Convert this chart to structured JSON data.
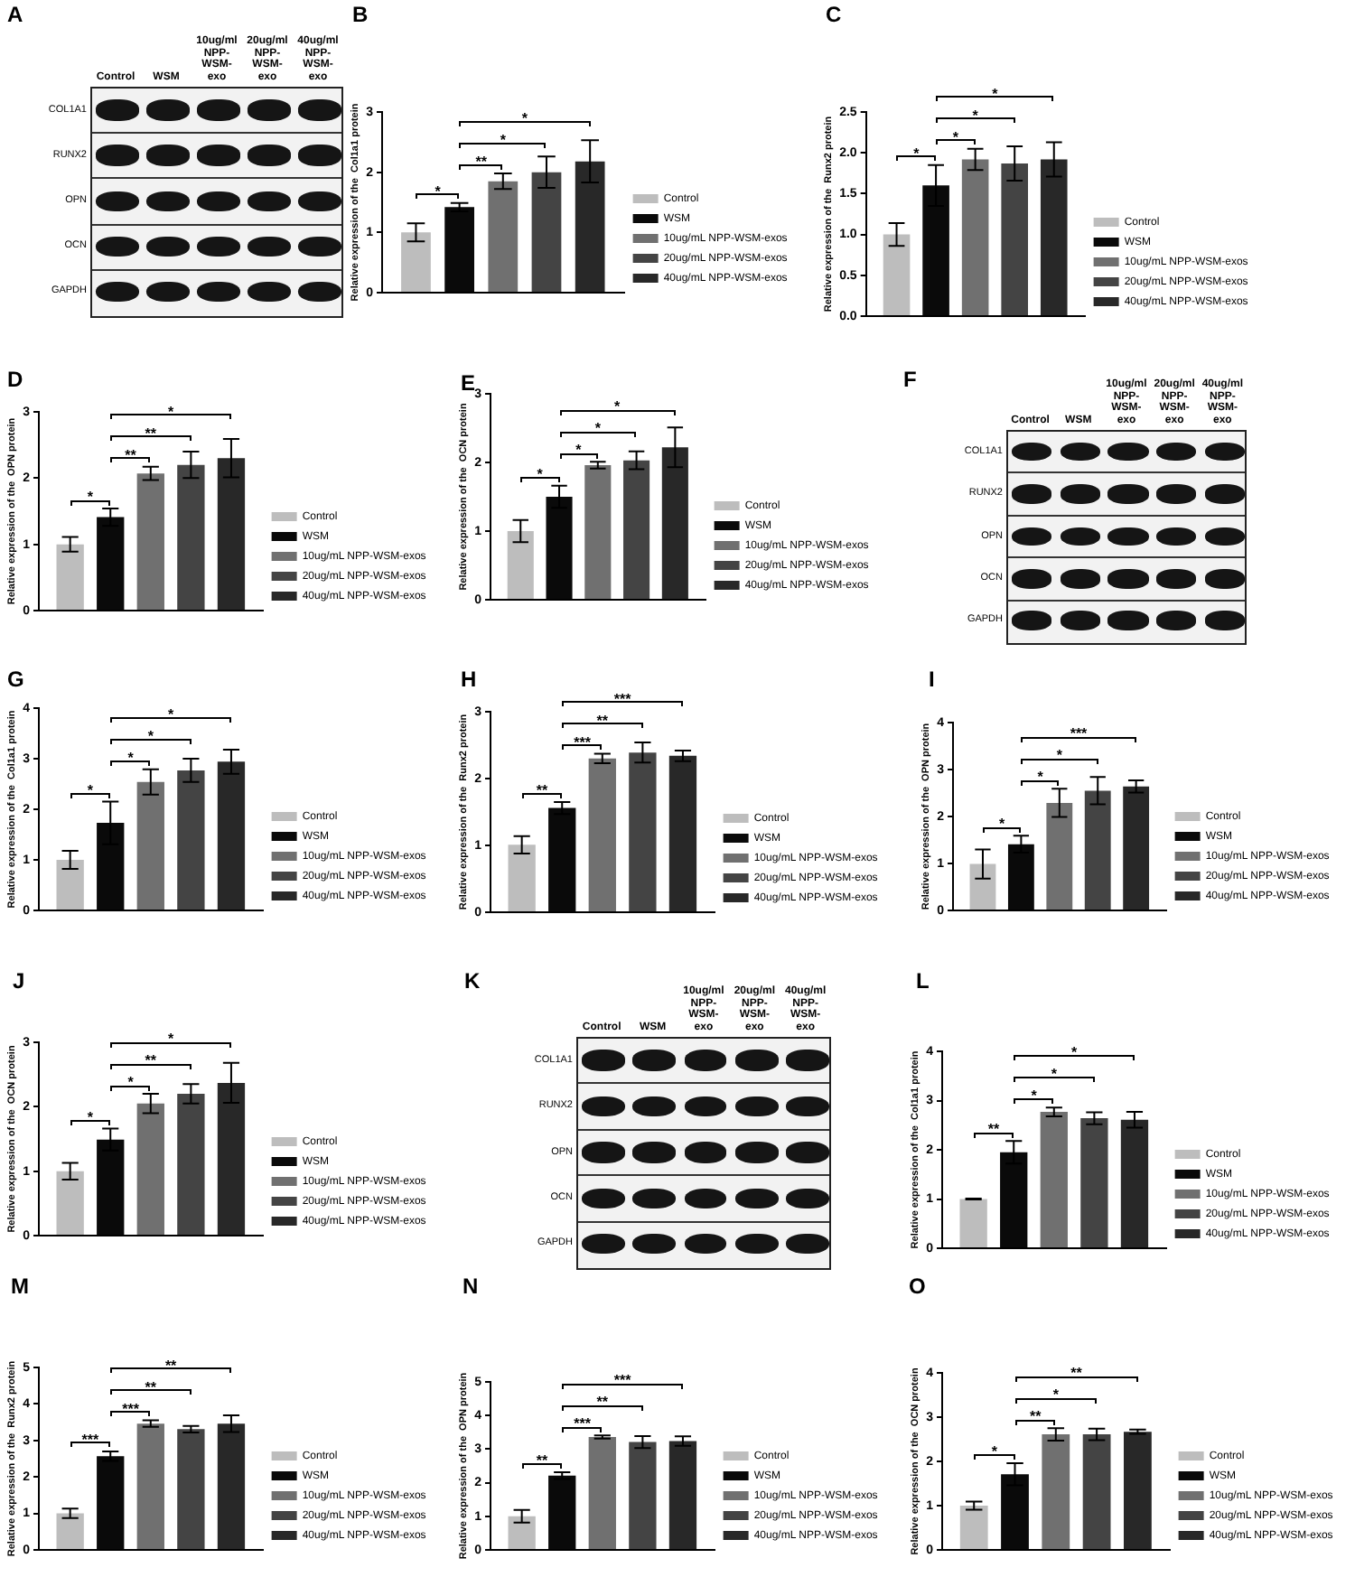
{
  "chart_data": [
    {
      "type": "other",
      "title": "A",
      "categories": [
        "Control",
        "WSM",
        "10ug/ml NPP-WSM-exo",
        "20ug/ml NPP-WSM-exo",
        "40ug/ml NPP-WSM-exo"
      ],
      "y_categories": [
        "COL1A1",
        "RUNX2",
        "OPN",
        "OCN",
        "GAPDH"
      ]
    },
    {
      "type": "bar",
      "title": "B",
      "ylabel": "Relative expression of the  Col1a1 protein",
      "categories": [
        null
      ],
      "series": [
        {
          "name": "Control",
          "color": "#bdbdbd",
          "values": [
            1.0
          ],
          "errors": [
            0.15
          ]
        },
        {
          "name": "WSM",
          "color": "#0a0a0a",
          "values": [
            1.42
          ],
          "errors": [
            0.07
          ]
        },
        {
          "name": "10ug/mL NPP-WSM-exos",
          "color": "#707070",
          "values": [
            1.85
          ],
          "errors": [
            0.13
          ]
        },
        {
          "name": "20ug/mL NPP-WSM-exos",
          "color": "#444444",
          "values": [
            2.0
          ],
          "errors": [
            0.26
          ]
        },
        {
          "name": "40ug/mL NPP-WSM-exos",
          "color": "#282828",
          "values": [
            2.18
          ],
          "errors": [
            0.35
          ]
        }
      ],
      "ylim": [
        0,
        3
      ],
      "yticks": [
        0,
        1,
        2,
        3
      ],
      "legend": "right",
      "annotations": [
        "*",
        "**",
        "*",
        "*"
      ]
    },
    {
      "type": "bar",
      "title": "C",
      "ylabel": "Relative expression of the  Runx2 protein",
      "categories": [
        null
      ],
      "series": [
        {
          "name": "Control",
          "color": "#bdbdbd",
          "values": [
            1.0
          ],
          "errors": [
            0.14
          ]
        },
        {
          "name": "WSM",
          "color": "#0a0a0a",
          "values": [
            1.6
          ],
          "errors": [
            0.25
          ]
        },
        {
          "name": "10ug/mL NPP-WSM-exos",
          "color": "#707070",
          "values": [
            1.92
          ],
          "errors": [
            0.13
          ]
        },
        {
          "name": "20ug/mL NPP-WSM-exos",
          "color": "#444444",
          "values": [
            1.87
          ],
          "errors": [
            0.21
          ]
        },
        {
          "name": "40ug/mL NPP-WSM-exos",
          "color": "#282828",
          "values": [
            1.92
          ],
          "errors": [
            0.21
          ]
        }
      ],
      "ylim": [
        0,
        2.5
      ],
      "yticks": [
        {
          "value": 0,
          "label": "0.0"
        },
        0.5,
        {
          "value": 1,
          "label": "1.0"
        },
        1.5,
        {
          "value": 2,
          "label": "2.0"
        },
        2.5
      ],
      "legend": "right",
      "annotations": [
        "*",
        "*",
        "*",
        "*"
      ]
    },
    {
      "type": "bar",
      "title": "D",
      "ylabel": "Relative expression of the  OPN protein",
      "categories": [
        null
      ],
      "series": [
        {
          "name": "Control",
          "color": "#bdbdbd",
          "values": [
            1.0
          ],
          "errors": [
            0.11
          ]
        },
        {
          "name": "WSM",
          "color": "#0a0a0a",
          "values": [
            1.41
          ],
          "errors": [
            0.13
          ]
        },
        {
          "name": "10ug/mL NPP-WSM-exos",
          "color": "#707070",
          "values": [
            2.07
          ],
          "errors": [
            0.1
          ]
        },
        {
          "name": "20ug/mL NPP-WSM-exos",
          "color": "#444444",
          "values": [
            2.2
          ],
          "errors": [
            0.2
          ]
        },
        {
          "name": "40ug/mL NPP-WSM-exos",
          "color": "#282828",
          "values": [
            2.3
          ],
          "errors": [
            0.29
          ]
        }
      ],
      "ylim": [
        0,
        3
      ],
      "yticks": [
        0,
        1,
        2,
        3
      ],
      "legend": "right",
      "annotations": [
        "*",
        "**",
        "**",
        "*"
      ]
    },
    {
      "type": "bar",
      "title": "E",
      "ylabel": "Relative expression of the  OCN protein",
      "categories": [
        null
      ],
      "series": [
        {
          "name": "Control",
          "color": "#bdbdbd",
          "values": [
            1.0
          ],
          "errors": [
            0.16
          ]
        },
        {
          "name": "WSM",
          "color": "#0a0a0a",
          "values": [
            1.5
          ],
          "errors": [
            0.16
          ]
        },
        {
          "name": "10ug/mL NPP-WSM-exos",
          "color": "#707070",
          "values": [
            1.96
          ],
          "errors": [
            0.05
          ]
        },
        {
          "name": "20ug/mL NPP-WSM-exos",
          "color": "#444444",
          "values": [
            2.03
          ],
          "errors": [
            0.13
          ]
        },
        {
          "name": "40ug/mL NPP-WSM-exos",
          "color": "#282828",
          "values": [
            2.22
          ],
          "errors": [
            0.29
          ]
        }
      ],
      "ylim": [
        0,
        3
      ],
      "yticks": [
        0,
        1,
        2,
        3
      ],
      "legend": "right",
      "annotations": [
        "*",
        "*",
        "*",
        "*"
      ]
    },
    {
      "type": "other",
      "title": "F",
      "categories": [
        "Control",
        "WSM",
        "10ug/ml NPP-WSM-exo",
        "20ug/ml NPP-WSM-exo",
        "40ug/ml NPP-WSM-exo"
      ],
      "y_categories": [
        "COL1A1",
        "RUNX2",
        "OPN",
        "OCN",
        "GAPDH"
      ]
    },
    {
      "type": "bar",
      "title": "G",
      "ylabel": "Relative expression of the  Col1a1 protein",
      "categories": [
        null
      ],
      "series": [
        {
          "name": "Control",
          "color": "#bdbdbd",
          "values": [
            1.0
          ],
          "errors": [
            0.18
          ]
        },
        {
          "name": "WSM",
          "color": "#0a0a0a",
          "values": [
            1.73
          ],
          "errors": [
            0.42
          ]
        },
        {
          "name": "10ug/mL NPP-WSM-exos",
          "color": "#707070",
          "values": [
            2.54
          ],
          "errors": [
            0.25
          ]
        },
        {
          "name": "20ug/mL NPP-WSM-exos",
          "color": "#444444",
          "values": [
            2.77
          ],
          "errors": [
            0.23
          ]
        },
        {
          "name": "40ug/mL NPP-WSM-exos",
          "color": "#282828",
          "values": [
            2.94
          ],
          "errors": [
            0.24
          ]
        }
      ],
      "ylim": [
        0,
        4
      ],
      "yticks": [
        0,
        1,
        2,
        3,
        4
      ],
      "legend": "right",
      "annotations": [
        "*",
        "*",
        "*",
        "*"
      ]
    },
    {
      "type": "bar",
      "title": "H",
      "ylabel": "Relative expression of the  Runx2 protein",
      "categories": [
        null
      ],
      "series": [
        {
          "name": "Control",
          "color": "#bdbdbd",
          "values": [
            1.01
          ],
          "errors": [
            0.13
          ]
        },
        {
          "name": "WSM",
          "color": "#0a0a0a",
          "values": [
            1.56
          ],
          "errors": [
            0.09
          ]
        },
        {
          "name": "10ug/mL NPP-WSM-exos",
          "color": "#707070",
          "values": [
            2.3
          ],
          "errors": [
            0.07
          ]
        },
        {
          "name": "20ug/mL NPP-WSM-exos",
          "color": "#444444",
          "values": [
            2.39
          ],
          "errors": [
            0.15
          ]
        },
        {
          "name": "40ug/mL NPP-WSM-exos",
          "color": "#282828",
          "values": [
            2.34
          ],
          "errors": [
            0.08
          ]
        }
      ],
      "ylim": [
        0,
        3
      ],
      "yticks": [
        0,
        1,
        2,
        3
      ],
      "legend": "right",
      "annotations": [
        "**",
        "***",
        "**",
        "***"
      ]
    },
    {
      "type": "bar",
      "title": "I",
      "ylabel": "Relative expression of the  OPN protein",
      "categories": [
        null
      ],
      "series": [
        {
          "name": "Control",
          "color": "#bdbdbd",
          "values": [
            0.99
          ],
          "errors": [
            0.31
          ]
        },
        {
          "name": "WSM",
          "color": "#0a0a0a",
          "values": [
            1.41
          ],
          "errors": [
            0.18
          ]
        },
        {
          "name": "10ug/mL NPP-WSM-exos",
          "color": "#707070",
          "values": [
            2.29
          ],
          "errors": [
            0.3
          ]
        },
        {
          "name": "20ug/mL NPP-WSM-exos",
          "color": "#444444",
          "values": [
            2.55
          ],
          "errors": [
            0.29
          ]
        },
        {
          "name": "40ug/mL NPP-WSM-exos",
          "color": "#282828",
          "values": [
            2.64
          ],
          "errors": [
            0.13
          ]
        }
      ],
      "ylim": [
        0,
        4
      ],
      "yticks": [
        0,
        1,
        2,
        3,
        4
      ],
      "legend": "right",
      "annotations": [
        "*",
        "*",
        "*",
        "***"
      ]
    },
    {
      "type": "bar",
      "title": "J",
      "ylabel": "Relative expression of the  OCN protein",
      "categories": [
        null
      ],
      "series": [
        {
          "name": "Control",
          "color": "#bdbdbd",
          "values": [
            1.0
          ],
          "errors": [
            0.13
          ]
        },
        {
          "name": "WSM",
          "color": "#0a0a0a",
          "values": [
            1.49
          ],
          "errors": [
            0.17
          ]
        },
        {
          "name": "10ug/mL NPP-WSM-exos",
          "color": "#707070",
          "values": [
            2.05
          ],
          "errors": [
            0.15
          ]
        },
        {
          "name": "20ug/mL NPP-WSM-exos",
          "color": "#444444",
          "values": [
            2.2
          ],
          "errors": [
            0.15
          ]
        },
        {
          "name": "40ug/mL NPP-WSM-exos",
          "color": "#282828",
          "values": [
            2.37
          ],
          "errors": [
            0.31
          ]
        }
      ],
      "ylim": [
        0,
        3
      ],
      "yticks": [
        0,
        1,
        2,
        3
      ],
      "legend": "right",
      "annotations": [
        "*",
        "*",
        "**",
        "*"
      ]
    },
    {
      "type": "other",
      "title": "K",
      "categories": [
        "Control",
        "WSM",
        "10ug/ml NPP-WSM-exo",
        "20ug/ml NPP-WSM-exo",
        "40ug/ml NPP-WSM-exo"
      ],
      "y_categories": [
        "COL1A1",
        "RUNX2",
        "OPN",
        "OCN",
        "GAPDH"
      ]
    },
    {
      "type": "bar",
      "title": "L",
      "ylabel": "Relative expression of the  Col1a1 protein",
      "categories": [
        null
      ],
      "series": [
        {
          "name": "Control",
          "color": "#bdbdbd",
          "values": [
            1.0
          ],
          "errors": [
            0.01
          ]
        },
        {
          "name": "WSM",
          "color": "#0a0a0a",
          "values": [
            1.95
          ],
          "errors": [
            0.23
          ]
        },
        {
          "name": "10ug/mL NPP-WSM-exos",
          "color": "#707070",
          "values": [
            2.77
          ],
          "errors": [
            0.09
          ]
        },
        {
          "name": "20ug/mL NPP-WSM-exos",
          "color": "#444444",
          "values": [
            2.64
          ],
          "errors": [
            0.12
          ]
        },
        {
          "name": "40ug/mL NPP-WSM-exos",
          "color": "#282828",
          "values": [
            2.61
          ],
          "errors": [
            0.16
          ]
        }
      ],
      "ylim": [
        0,
        4
      ],
      "yticks": [
        0,
        1,
        2,
        3,
        4
      ],
      "legend": "right",
      "annotations": [
        "**",
        "*",
        "*",
        "*"
      ]
    },
    {
      "type": "bar",
      "title": "M",
      "ylabel": "Relative expression of the  Runx2 protein",
      "categories": [
        null
      ],
      "series": [
        {
          "name": "Control",
          "color": "#bdbdbd",
          "values": [
            1.0
          ],
          "errors": [
            0.13
          ]
        },
        {
          "name": "WSM",
          "color": "#0a0a0a",
          "values": [
            2.57
          ],
          "errors": [
            0.13
          ]
        },
        {
          "name": "10ug/mL NPP-WSM-exos",
          "color": "#707070",
          "values": [
            3.46
          ],
          "errors": [
            0.09
          ]
        },
        {
          "name": "20ug/mL NPP-WSM-exos",
          "color": "#444444",
          "values": [
            3.31
          ],
          "errors": [
            0.09
          ]
        },
        {
          "name": "40ug/mL NPP-WSM-exos",
          "color": "#282828",
          "values": [
            3.46
          ],
          "errors": [
            0.23
          ]
        }
      ],
      "ylim": [
        0,
        5
      ],
      "yticks": [
        0,
        1,
        2,
        3,
        4,
        5
      ],
      "legend": "right",
      "annotations": [
        "***",
        "***",
        "**",
        "**"
      ]
    },
    {
      "type": "bar",
      "title": "N",
      "ylabel": "Relative expression of the  OPN protein",
      "categories": [
        null
      ],
      "series": [
        {
          "name": "Control",
          "color": "#bdbdbd",
          "values": [
            1.0
          ],
          "errors": [
            0.19
          ]
        },
        {
          "name": "WSM",
          "color": "#0a0a0a",
          "values": [
            2.21
          ],
          "errors": [
            0.1
          ]
        },
        {
          "name": "10ug/mL NPP-WSM-exos",
          "color": "#707070",
          "values": [
            3.36
          ],
          "errors": [
            0.05
          ]
        },
        {
          "name": "20ug/mL NPP-WSM-exos",
          "color": "#444444",
          "values": [
            3.21
          ],
          "errors": [
            0.18
          ]
        },
        {
          "name": "40ug/mL NPP-WSM-exos",
          "color": "#282828",
          "values": [
            3.24
          ],
          "errors": [
            0.14
          ]
        }
      ],
      "ylim": [
        0,
        5
      ],
      "yticks": [
        0,
        1,
        2,
        3,
        4,
        5
      ],
      "legend": "right",
      "annotations": [
        "**",
        "***",
        "**",
        "***"
      ]
    },
    {
      "type": "bar",
      "title": "O",
      "ylabel": "Relative expression of the  OCN protein",
      "categories": [
        null
      ],
      "series": [
        {
          "name": "Control",
          "color": "#bdbdbd",
          "values": [
            1.0
          ],
          "errors": [
            0.09
          ]
        },
        {
          "name": "WSM",
          "color": "#0a0a0a",
          "values": [
            1.71
          ],
          "errors": [
            0.25
          ]
        },
        {
          "name": "10ug/mL NPP-WSM-exos",
          "color": "#707070",
          "values": [
            2.61
          ],
          "errors": [
            0.14
          ]
        },
        {
          "name": "20ug/mL NPP-WSM-exos",
          "color": "#444444",
          "values": [
            2.61
          ],
          "errors": [
            0.13
          ]
        },
        {
          "name": "40ug/mL NPP-WSM-exos",
          "color": "#282828",
          "values": [
            2.67
          ],
          "errors": [
            0.05
          ]
        }
      ],
      "ylim": [
        0,
        4
      ],
      "yticks": [
        0,
        1,
        2,
        3,
        4
      ],
      "legend": "right",
      "annotations": [
        "*",
        "**",
        "*",
        "**"
      ]
    }
  ]
}
